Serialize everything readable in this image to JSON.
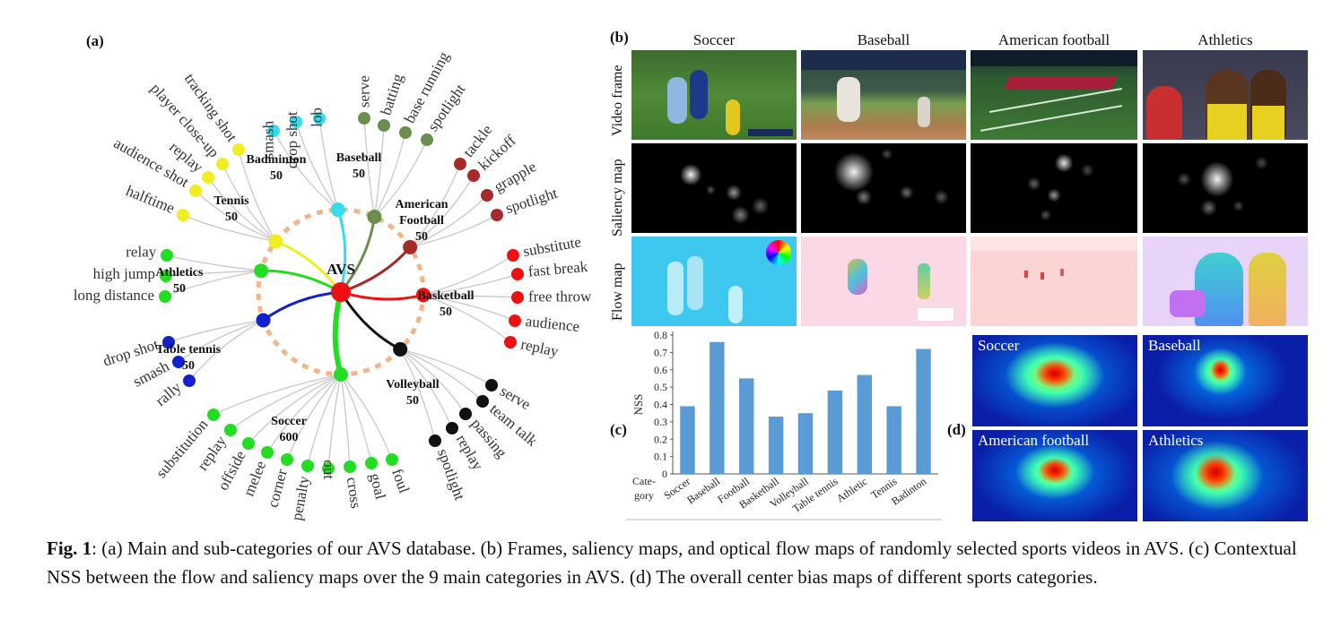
{
  "panel_a": {
    "label": "(a)",
    "root": "AVS",
    "categories": [
      {
        "name": "Badminton",
        "count": "50",
        "color": "#33ddee",
        "subs": [
          "smash",
          "drop shot",
          "lob"
        ]
      },
      {
        "name": "Baseball",
        "count": "50",
        "color": "#6b8e4e",
        "subs": [
          "serve",
          "batting",
          "base running",
          "spotlight"
        ]
      },
      {
        "name": "American\nFootball",
        "count": "50",
        "color": "#a52a2a",
        "subs": [
          "tackle",
          "kickoff",
          "grapple",
          "spotlight"
        ]
      },
      {
        "name": "Basketball",
        "count": "50",
        "color": "#ee1111",
        "subs": [
          "substitute",
          "fast break",
          "free throw",
          "audience",
          "replay"
        ]
      },
      {
        "name": "Volleyball",
        "count": "50",
        "color": "#111111",
        "subs": [
          "serve",
          "team talk",
          "passing",
          "replay",
          "spotlight"
        ]
      },
      {
        "name": "Soccer",
        "count": "600",
        "color": "#22dd22",
        "subs": [
          "substitution",
          "replay",
          "offside",
          "melee",
          "corner",
          "penalty",
          "out",
          "cross",
          "goal",
          "foul"
        ]
      },
      {
        "name": "Table tennis",
        "count": "50",
        "color": "#1122cc",
        "subs": [
          "drop shot",
          "smash",
          "rally"
        ]
      },
      {
        "name": "Athletics",
        "count": "50",
        "color": "#22dd22",
        "subs": [
          "relay",
          "high jump",
          "long distance"
        ]
      },
      {
        "name": "Tennis",
        "count": "50",
        "color": "#eeee22",
        "subs": [
          "tracking shot",
          "player close-up",
          "replay",
          "audience shot",
          "halftime"
        ]
      }
    ]
  },
  "panel_b": {
    "label": "(b)",
    "columns": [
      "Soccer",
      "Baseball",
      "American football",
      "Athletics"
    ],
    "rows": [
      "Video frame",
      "Saliency map",
      "Flow map"
    ]
  },
  "panel_c": {
    "label": "(c)",
    "chart_data": {
      "type": "bar",
      "categories": [
        "Soccer",
        "Baseball",
        "Football",
        "Basketball",
        "Volleyball",
        "Table tennis",
        "Athletic",
        "Tennis",
        "Badinton"
      ],
      "values": [
        0.39,
        0.76,
        0.55,
        0.33,
        0.35,
        0.48,
        0.57,
        0.39,
        0.72
      ],
      "ylabel": "NSS",
      "xlabel": "Cate-\ngory",
      "ylim": [
        0,
        0.8
      ],
      "yticks": [
        "0",
        "0.1",
        "0.2",
        "0.3",
        "0.4",
        "0.5",
        "0.6",
        "0.7",
        "0.8"
      ],
      "bar_color": "#5b9bd5"
    }
  },
  "panel_d": {
    "label": "(d)",
    "maps": [
      "Soccer",
      "Baseball",
      "American football",
      "Athletics"
    ]
  },
  "caption": {
    "fig": "Fig. 1",
    "text": ": (a) Main and sub-categories of our AVS database. (b) Frames, saliency maps, and optical flow maps of randomly selected sports videos in AVS. (c) Contextual NSS between the flow and saliency maps over the 9 main categories in AVS. (d) The overall center bias maps of different sports categories."
  }
}
